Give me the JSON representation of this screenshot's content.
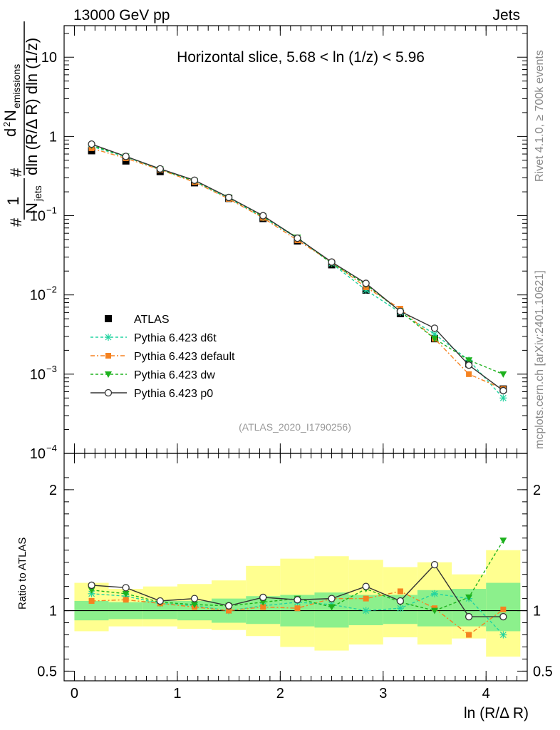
{
  "header": {
    "left": "13000 GeV pp",
    "right": "Jets"
  },
  "side": {
    "rivet": "Rivet 4.1.0, ≥ 700k events",
    "site": "mcplots.cern.ch [arXiv:2401.10621]"
  },
  "colors": {
    "data": "#000000",
    "d6t": "#22d3a0",
    "default": "#f58220",
    "dw": "#1db11d",
    "p0": "#333333",
    "band_inner": "#8cf08c",
    "band_outer": "#ffff90"
  },
  "chart_data": [
    {
      "type": "line",
      "panel": "main",
      "title": "Horizontal slice, 5.68 < ln (1/z) < 5.96",
      "watermark": "(ATLAS_2020_I1790256)",
      "ylabel_parts": {
        "hash1": "#",
        "one": "1",
        "njets": "N",
        "jets_sub": "jets",
        "hash2": "#",
        "d2n": "d",
        "two": "2",
        "nem": "N",
        "em_sub": "emissions",
        "denom": "dln (R/Δ R) dln (1/z)"
      },
      "yscale": "log",
      "ylim": [
        0.0001,
        25
      ],
      "y_ticks": [
        {
          "value": 0.0001,
          "base": "10",
          "exp": "−4"
        },
        {
          "value": 0.001,
          "base": "10",
          "exp": "−3"
        },
        {
          "value": 0.01,
          "base": "10",
          "exp": "−2"
        },
        {
          "value": 0.1,
          "base": "10",
          "exp": "−1"
        },
        {
          "value": 1,
          "base": "1",
          "exp": ""
        },
        {
          "value": 10,
          "base": "10",
          "exp": ""
        }
      ],
      "xlim": [
        -0.1,
        4.4
      ],
      "x": [
        0.167,
        0.5,
        0.833,
        1.167,
        1.5,
        1.833,
        2.167,
        2.5,
        2.833,
        3.167,
        3.5,
        3.833,
        4.167
      ],
      "legend": [
        {
          "key": "data",
          "label": "ATLAS"
        },
        {
          "key": "d6t",
          "label": "Pythia 6.423 d6t"
        },
        {
          "key": "default",
          "label": "Pythia 6.423 default"
        },
        {
          "key": "dw",
          "label": "Pythia 6.423 dw"
        },
        {
          "key": "p0",
          "label": "Pythia 6.423 p0"
        }
      ],
      "series": [
        {
          "key": "data",
          "name": "ATLAS",
          "values": [
            0.66,
            0.49,
            0.36,
            0.26,
            0.165,
            0.092,
            0.048,
            0.024,
            0.0115,
            0.0058,
            0.0028,
            0.00135,
            0.00065
          ]
        },
        {
          "key": "d6t",
          "name": "Pythia 6.423 d6t",
          "values": [
            0.75,
            0.55,
            0.385,
            0.27,
            0.165,
            0.095,
            0.052,
            0.025,
            0.0115,
            0.006,
            0.0032,
            0.0015,
            0.0005
          ]
        },
        {
          "key": "default",
          "name": "Pythia 6.423 default",
          "values": [
            0.71,
            0.53,
            0.38,
            0.265,
            0.163,
            0.094,
            0.049,
            0.026,
            0.0125,
            0.0067,
            0.0028,
            0.001,
            0.00065
          ]
        },
        {
          "key": "dw",
          "name": "Pythia 6.423 dw",
          "values": [
            0.77,
            0.56,
            0.385,
            0.275,
            0.17,
            0.098,
            0.053,
            0.025,
            0.0135,
            0.0062,
            0.0028,
            0.0015,
            0.001
          ]
        },
        {
          "key": "p0",
          "name": "Pythia 6.423 p0",
          "values": [
            0.8,
            0.56,
            0.39,
            0.28,
            0.17,
            0.1,
            0.052,
            0.026,
            0.014,
            0.0062,
            0.0038,
            0.0013,
            0.00062
          ]
        }
      ]
    },
    {
      "type": "line",
      "panel": "ratio",
      "ylabel": "Ratio to ATLAS",
      "xlabel": "ln (R/Δ R)",
      "ylim": [
        0.42,
        2.3
      ],
      "y_ticks": [
        0.5,
        1,
        2
      ],
      "y_tick_labels": [
        "0.5",
        "1",
        "2"
      ],
      "xlim": [
        -0.1,
        4.4
      ],
      "x_ticks": [
        0,
        1,
        2,
        3,
        4
      ],
      "x_tick_labels": [
        "0",
        "1",
        "2",
        "3",
        "4"
      ],
      "bin_edges": [
        0,
        0.333,
        0.667,
        1.0,
        1.333,
        1.667,
        2.0,
        2.333,
        2.667,
        3.0,
        3.333,
        3.667,
        4.0,
        4.333
      ],
      "band_inner": [
        [
          0.92,
          1.08
        ],
        [
          0.93,
          1.07
        ],
        [
          0.93,
          1.08
        ],
        [
          0.92,
          1.08
        ],
        [
          0.9,
          1.1
        ],
        [
          0.89,
          1.12
        ],
        [
          0.87,
          1.13
        ],
        [
          0.86,
          1.15
        ],
        [
          0.88,
          1.13
        ],
        [
          0.89,
          1.13
        ],
        [
          0.87,
          1.17
        ],
        [
          0.87,
          1.18
        ],
        [
          0.83,
          1.23
        ]
      ],
      "band_outer": [
        [
          0.83,
          1.23
        ],
        [
          0.87,
          1.18
        ],
        [
          0.87,
          1.2
        ],
        [
          0.85,
          1.22
        ],
        [
          0.84,
          1.25
        ],
        [
          0.79,
          1.37
        ],
        [
          0.7,
          1.43
        ],
        [
          0.67,
          1.45
        ],
        [
          0.72,
          1.42
        ],
        [
          0.78,
          1.36
        ],
        [
          0.72,
          1.4
        ],
        [
          0.77,
          1.3
        ],
        [
          0.62,
          1.5
        ]
      ],
      "x": [
        0.167,
        0.5,
        0.833,
        1.167,
        1.5,
        1.833,
        2.167,
        2.5,
        2.833,
        3.167,
        3.5,
        3.833,
        4.167
      ],
      "series": [
        {
          "key": "d6t",
          "name": "Pythia 6.423 d6t",
          "values": [
            1.14,
            1.12,
            1.06,
            1.04,
            1.0,
            1.04,
            1.07,
            1.05,
            1.0,
            1.02,
            1.14,
            1.1,
            0.8
          ]
        },
        {
          "key": "default",
          "name": "Pythia 6.423 default",
          "values": [
            1.08,
            1.09,
            1.06,
            1.03,
            1.0,
            1.03,
            1.02,
            1.1,
            1.1,
            1.16,
            1.02,
            0.8,
            1.01
          ]
        },
        {
          "key": "dw",
          "name": "Pythia 6.423 dw",
          "values": [
            1.17,
            1.14,
            1.07,
            1.05,
            1.04,
            1.07,
            1.1,
            1.03,
            1.18,
            1.07,
            1.0,
            1.11,
            1.58
          ]
        },
        {
          "key": "p0",
          "name": "Pythia 6.423 p0",
          "values": [
            1.21,
            1.19,
            1.08,
            1.1,
            1.04,
            1.11,
            1.09,
            1.1,
            1.2,
            1.08,
            1.38,
            0.95,
            0.95
          ]
        }
      ]
    }
  ]
}
